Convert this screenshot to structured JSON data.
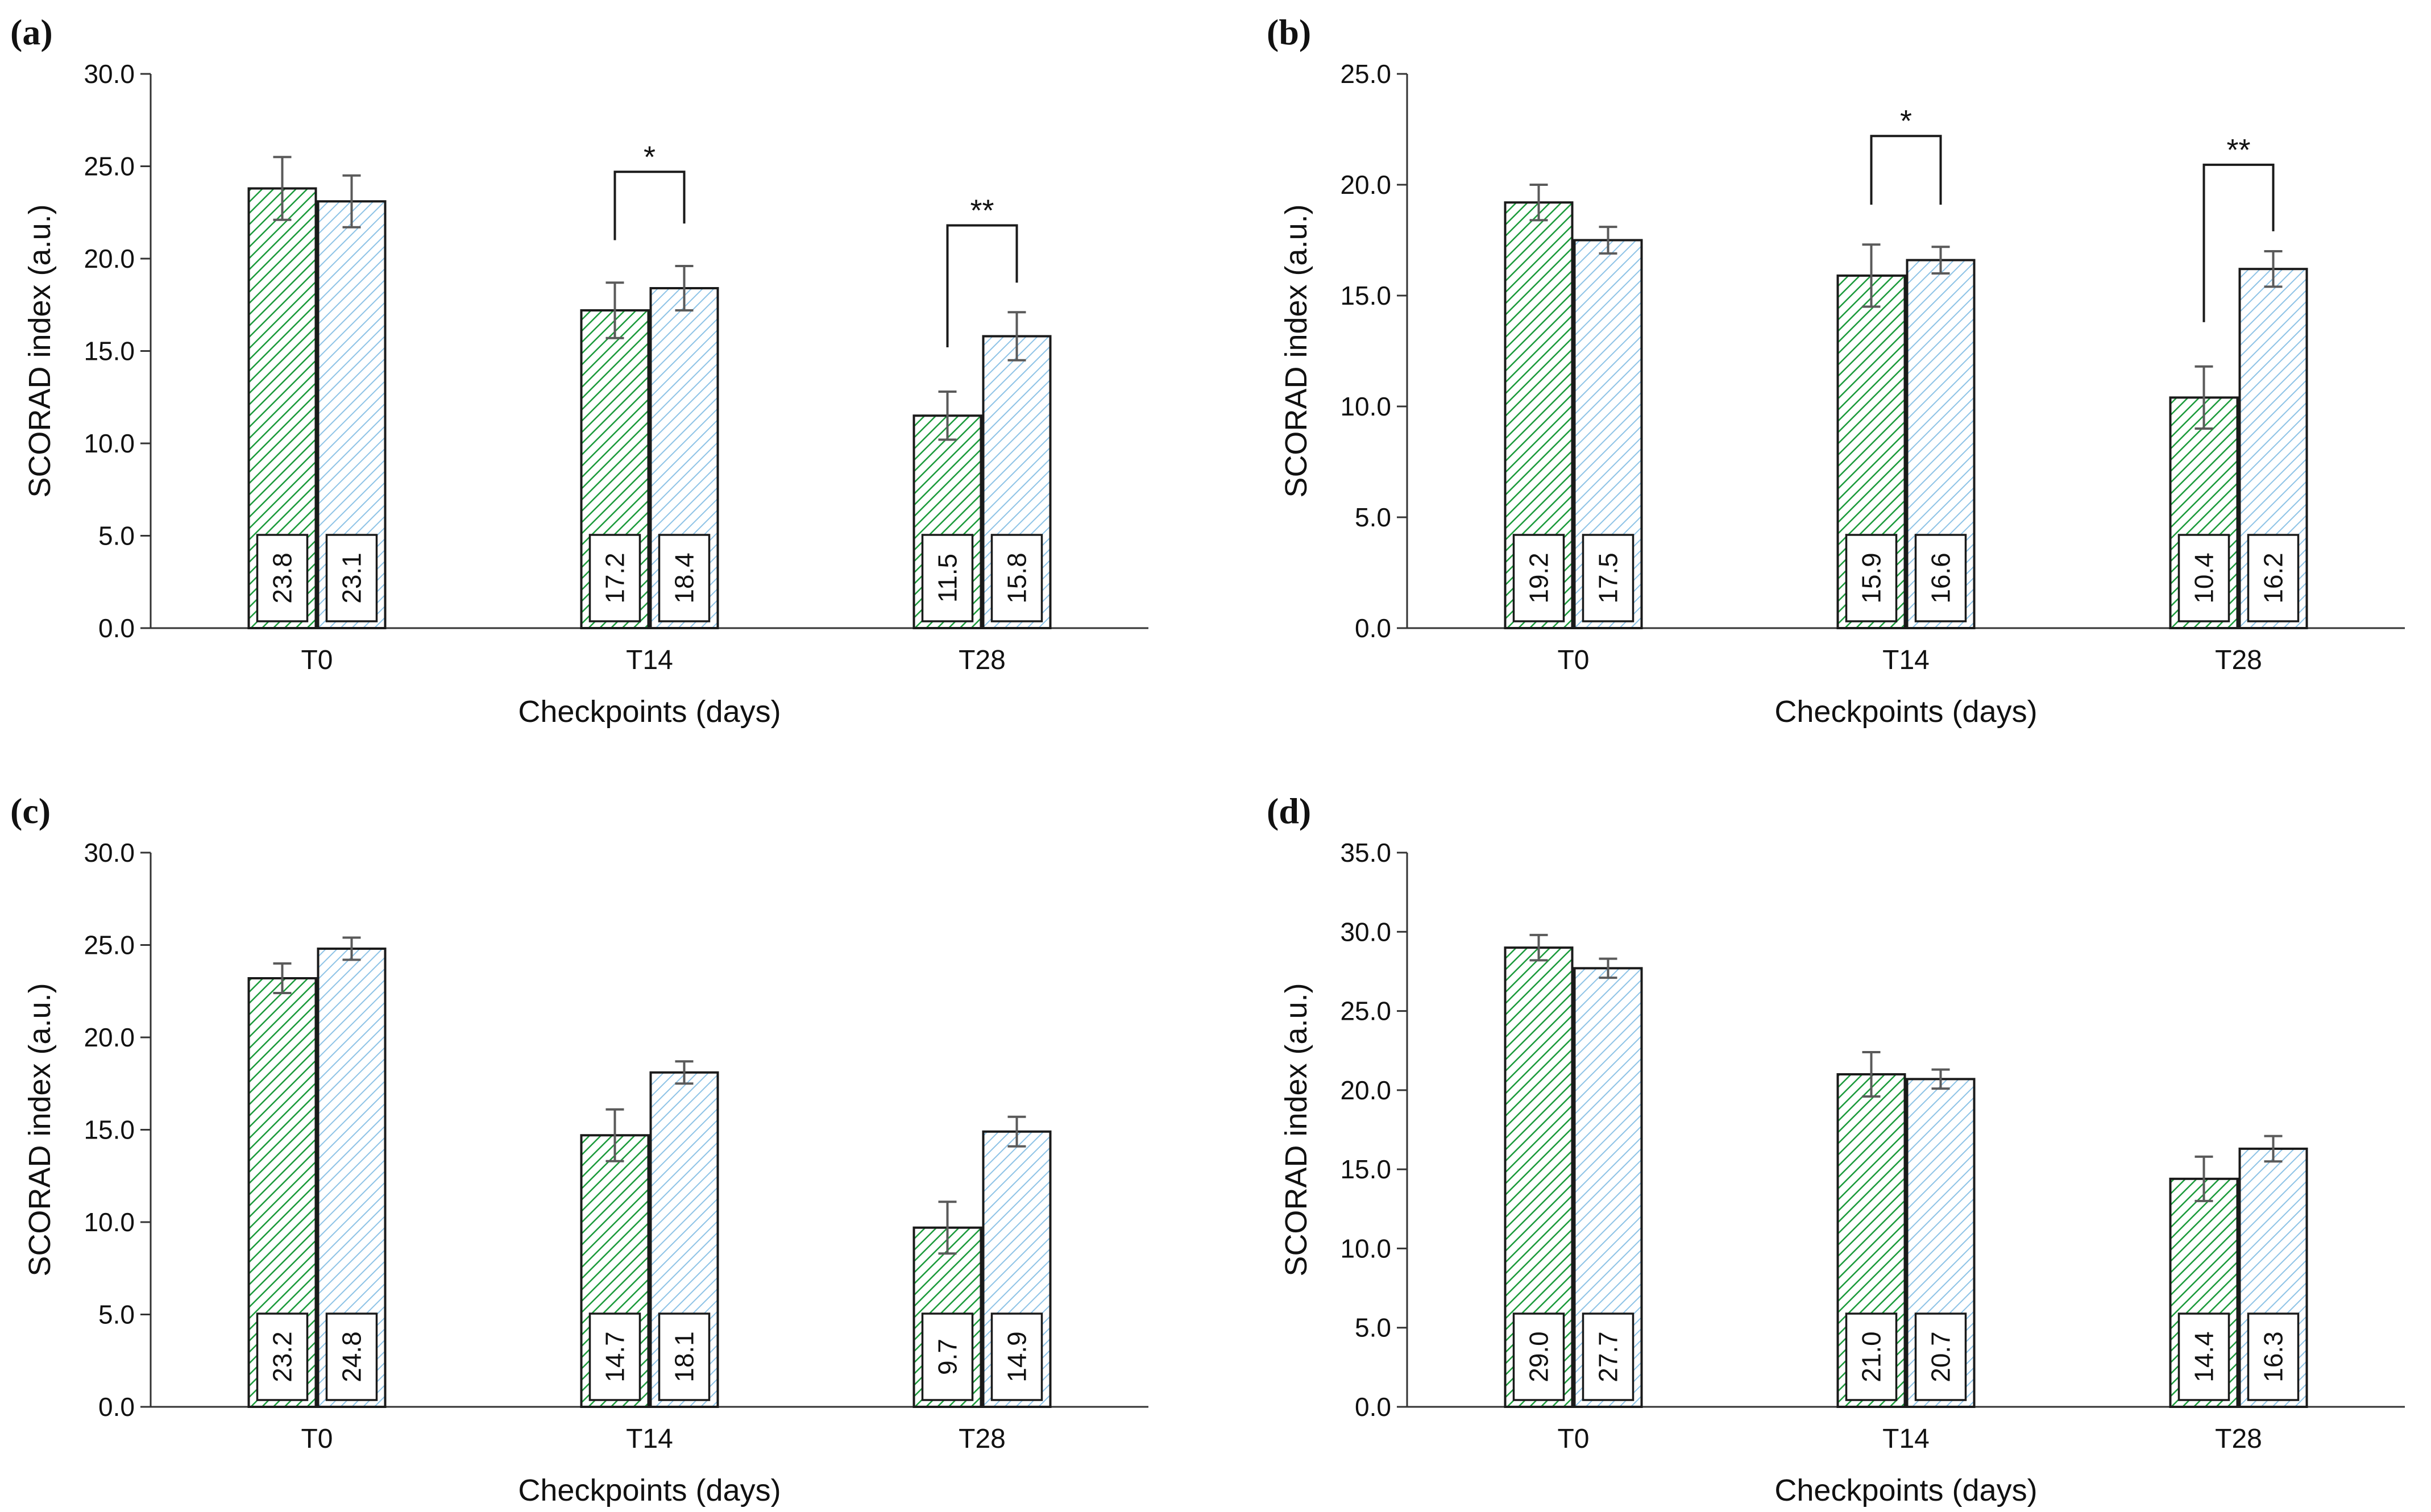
{
  "colors": {
    "green": "#1a9a3a",
    "blue": "#8ec3e6",
    "error": "#5a5a5a",
    "axis": "#333333",
    "text": "#111111"
  },
  "chart_data": [
    {
      "type": "bar",
      "panel": "(a)",
      "xlabel": "Checkpoints (days)",
      "ylabel": "SCORAD index (a.u.)",
      "ylim": [
        0,
        30
      ],
      "yticks": [
        "0.0",
        "5.0",
        "10.0",
        "15.0",
        "20.0",
        "25.0",
        "30.0"
      ],
      "categories": [
        "T0",
        "T14",
        "T28"
      ],
      "series": [
        {
          "name": "green",
          "values": [
            23.8,
            17.2,
            11.5
          ],
          "labels": [
            "23.8",
            "17.2",
            "11.5"
          ],
          "errors": [
            1.7,
            1.5,
            1.3
          ]
        },
        {
          "name": "blue",
          "values": [
            23.1,
            18.4,
            15.8
          ],
          "labels": [
            "23.1",
            "18.4",
            "15.8"
          ],
          "errors": [
            1.4,
            1.2,
            1.3
          ]
        }
      ],
      "significance": [
        {
          "category": 1,
          "text": "*",
          "level": 24.7,
          "left_start": 21.0,
          "right_start": 21.9
        },
        {
          "category": 2,
          "text": "**",
          "level": 21.8,
          "left_start": 15.2,
          "right_start": 18.7
        }
      ]
    },
    {
      "type": "bar",
      "panel": "(b)",
      "xlabel": "Checkpoints (days)",
      "ylabel": "SCORAD index (a.u.)",
      "ylim": [
        0,
        25
      ],
      "yticks": [
        "0.0",
        "5.0",
        "10.0",
        "15.0",
        "20.0",
        "25.0"
      ],
      "categories": [
        "T0",
        "T14",
        "T28"
      ],
      "series": [
        {
          "name": "green",
          "values": [
            19.2,
            15.9,
            10.4
          ],
          "labels": [
            "19.2",
            "15.9",
            "10.4"
          ],
          "errors": [
            0.8,
            1.4,
            1.4
          ]
        },
        {
          "name": "blue",
          "values": [
            17.5,
            16.6,
            16.2
          ],
          "labels": [
            "17.5",
            "16.6",
            "16.2"
          ],
          "errors": [
            0.6,
            0.6,
            0.8
          ]
        }
      ],
      "significance": [
        {
          "category": 1,
          "text": "*",
          "level": 22.2,
          "left_start": 19.1,
          "right_start": 19.1
        },
        {
          "category": 2,
          "text": "**",
          "level": 20.9,
          "left_start": 13.8,
          "right_start": 17.9
        }
      ]
    },
    {
      "type": "bar",
      "panel": "(c)",
      "xlabel": "Checkpoints (days)",
      "ylabel": "SCORAD index (a.u.)",
      "ylim": [
        0,
        30
      ],
      "yticks": [
        "0.0",
        "5.0",
        "10.0",
        "15.0",
        "20.0",
        "25.0",
        "30.0"
      ],
      "categories": [
        "T0",
        "T14",
        "T28"
      ],
      "series": [
        {
          "name": "green",
          "values": [
            23.2,
            14.7,
            9.7
          ],
          "labels": [
            "23.2",
            "14.7",
            "9.7"
          ],
          "errors": [
            0.8,
            1.4,
            1.4
          ]
        },
        {
          "name": "blue",
          "values": [
            24.8,
            18.1,
            14.9
          ],
          "labels": [
            "24.8",
            "18.1",
            "14.9"
          ],
          "errors": [
            0.6,
            0.6,
            0.8
          ]
        }
      ],
      "significance": []
    },
    {
      "type": "bar",
      "panel": "(d)",
      "xlabel": "Checkpoints (days)",
      "ylabel": "SCORAD index (a.u.)",
      "ylim": [
        0,
        35
      ],
      "yticks": [
        "0.0",
        "5.0",
        "10.0",
        "15.0",
        "20.0",
        "25.0",
        "30.0",
        "35.0"
      ],
      "categories": [
        "T0",
        "T14",
        "T28"
      ],
      "series": [
        {
          "name": "green",
          "values": [
            29.0,
            21.0,
            14.4
          ],
          "labels": [
            "29.0",
            "21.0",
            "14.4"
          ],
          "errors": [
            0.8,
            1.4,
            1.4
          ]
        },
        {
          "name": "blue",
          "values": [
            27.7,
            20.7,
            16.3
          ],
          "labels": [
            "27.7",
            "20.7",
            "16.3"
          ],
          "errors": [
            0.6,
            0.6,
            0.8
          ]
        }
      ],
      "significance": []
    }
  ]
}
